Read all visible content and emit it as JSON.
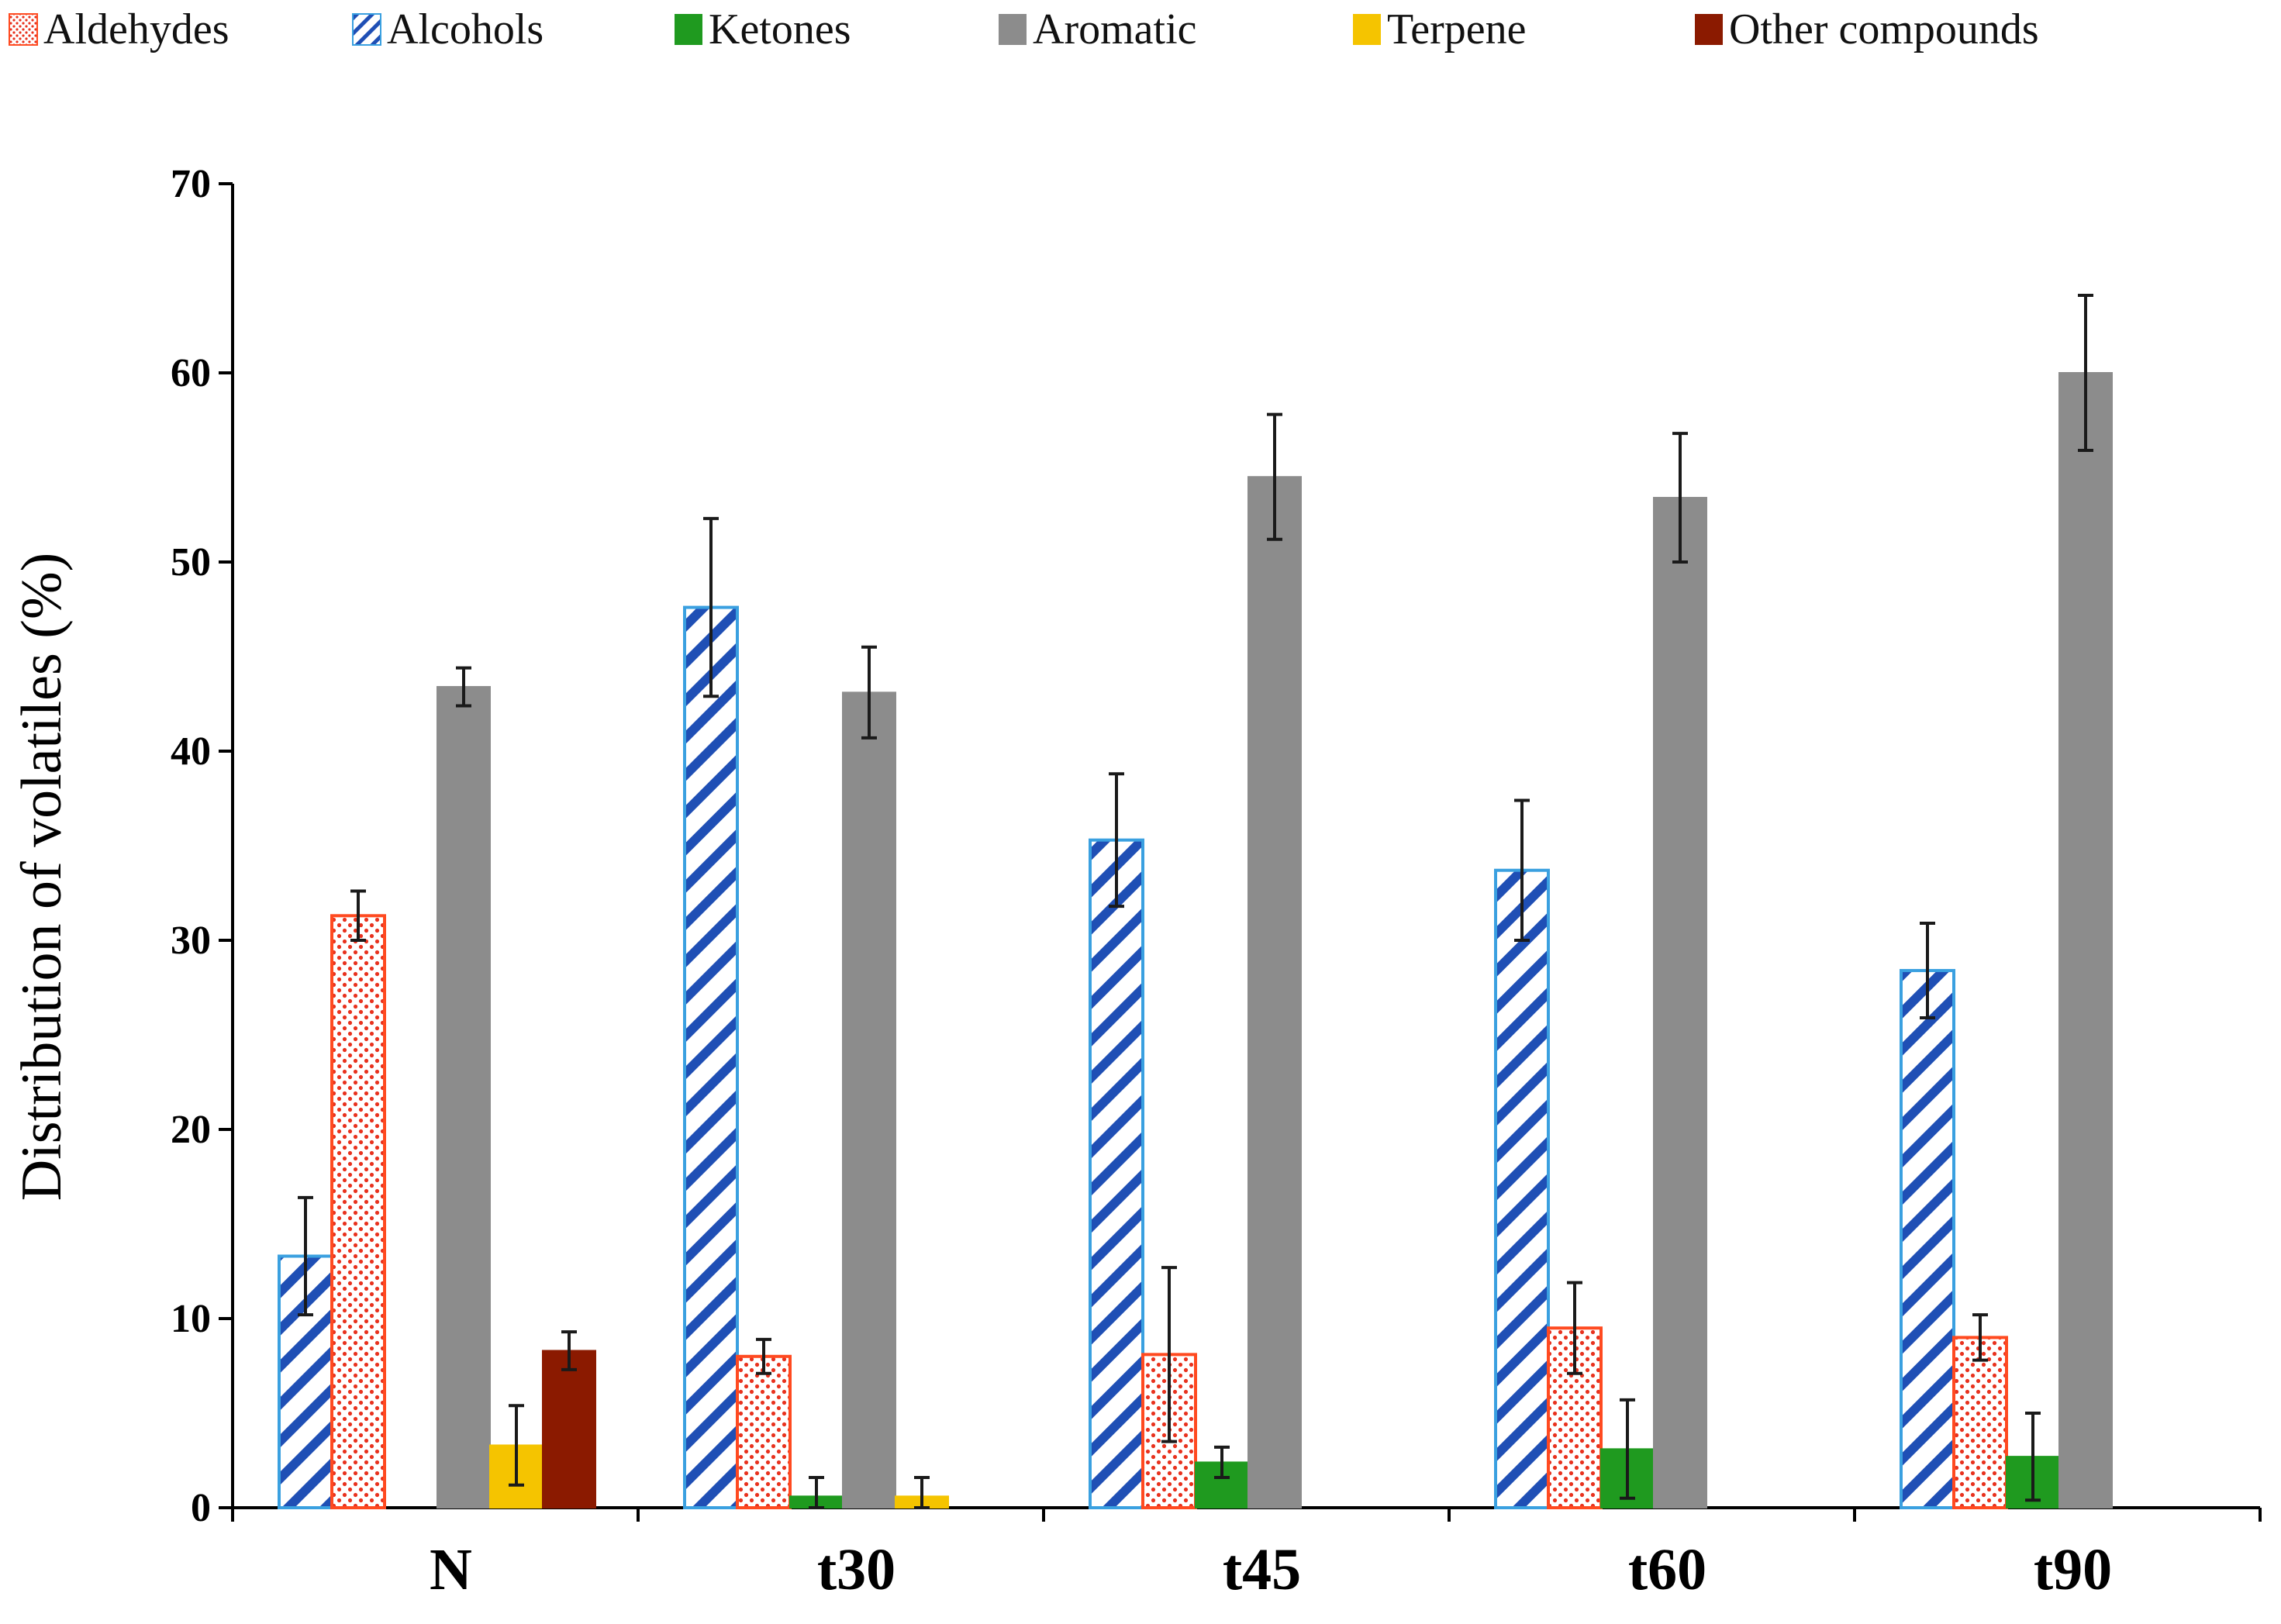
{
  "chart_data": {
    "type": "bar",
    "title": "",
    "xlabel": "",
    "ylabel": "Distribution of volatiles (%)",
    "ylim": [
      0,
      70
    ],
    "yticks": [
      0,
      10,
      20,
      30,
      40,
      50,
      60,
      70
    ],
    "legend_position": "top",
    "categories": [
      "N",
      "t30",
      "t45",
      "t60",
      "t90"
    ],
    "series": [
      {
        "name": "Aldehydes",
        "pattern": "dots",
        "color": "#e8321e",
        "values": [
          31.3,
          8.0,
          8.1,
          9.5,
          9.0
        ],
        "errors": [
          1.3,
          0.9,
          4.6,
          2.4,
          1.2
        ]
      },
      {
        "name": "Alcohols",
        "pattern": "diagonal",
        "color": "#1f4fb5",
        "values": [
          13.3,
          47.6,
          35.3,
          33.7,
          28.4
        ],
        "errors": [
          3.1,
          4.7,
          3.5,
          3.7,
          2.5
        ]
      },
      {
        "name": "Ketones",
        "pattern": "solid",
        "color": "#1f9a1f",
        "values": [
          0,
          0.6,
          2.4,
          3.1,
          2.7
        ],
        "errors": [
          0,
          1.0,
          0.8,
          2.6,
          2.3
        ]
      },
      {
        "name": "Aromatic",
        "pattern": "solid",
        "color": "#8c8c8c",
        "values": [
          43.4,
          43.1,
          54.5,
          53.4,
          60.0
        ],
        "errors": [
          1.0,
          2.4,
          3.3,
          3.4,
          4.1
        ]
      },
      {
        "name": "Terpene",
        "pattern": "solid",
        "color": "#f5c400",
        "values": [
          3.3,
          0.6,
          0,
          0,
          0
        ],
        "errors": [
          2.1,
          1.0,
          0,
          0,
          0
        ]
      },
      {
        "name": "Other compounds",
        "pattern": "solid",
        "color": "#8b1a00",
        "values": [
          8.3,
          0,
          0,
          0,
          0
        ],
        "errors": [
          1.0,
          0,
          0,
          0,
          0
        ]
      }
    ],
    "plot_order": [
      "Alcohols",
      "Aldehydes",
      "Ketones",
      "Aromatic",
      "Terpene",
      "Other compounds"
    ]
  }
}
